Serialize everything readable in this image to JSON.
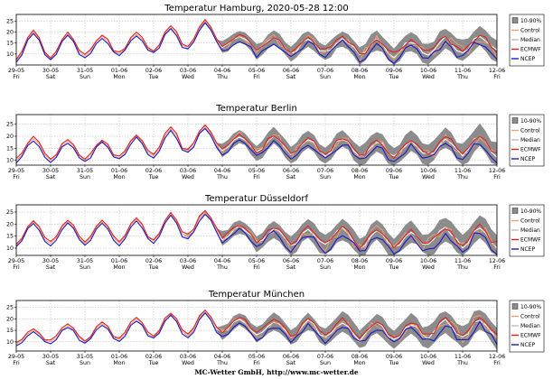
{
  "footer": "MC-Wetter GmbH, http://www.mc-wetter.de",
  "legend": [
    "10-90%",
    "Control",
    "Median",
    "ECMWF",
    "NCEP"
  ],
  "colors": {
    "band": "#8c8c8c",
    "control": "#f0a070",
    "median": "#ffffff",
    "ecmwf": "#dd2222",
    "ncep": "#1a1acc"
  },
  "chart_data": [
    {
      "type": "line",
      "title": "Temperatur Hamburg, 2020-05-28 12:00",
      "ylim": [
        5,
        28
      ],
      "yticks": [
        10,
        15,
        20,
        25
      ],
      "x_dates": [
        "29-05",
        "30-05",
        "31-05",
        "01-06",
        "02-06",
        "03-06",
        "04-06",
        "05-06",
        "06-06",
        "07-06",
        "08-06",
        "09-06",
        "10-06",
        "11-06",
        "12-06"
      ],
      "x_days": [
        "Fri",
        "Sat",
        "Sun",
        "Mon",
        "Tue",
        "Wed",
        "Thu",
        "Fri",
        "Sat",
        "Sun",
        "Mon",
        "Tue",
        "Wed",
        "Thu",
        "Fri"
      ],
      "grid": true,
      "legend_position": "right",
      "lows": [
        7,
        8,
        9,
        10,
        11,
        13,
        13,
        11,
        10,
        11,
        9,
        9,
        10,
        11
      ],
      "highs": [
        20,
        19,
        18,
        19,
        22,
        25,
        18,
        17,
        17,
        17,
        16,
        16,
        17,
        18
      ],
      "band_spread": [
        0,
        0,
        0,
        0,
        0,
        1,
        4,
        5,
        5,
        5,
        6,
        6,
        7,
        7
      ]
    },
    {
      "type": "line",
      "title": "Temperatur Berlin",
      "ylim": [
        8,
        29
      ],
      "yticks": [
        10,
        15,
        20,
        25
      ],
      "x_dates": [
        "29-05",
        "30-05",
        "31-05",
        "01-06",
        "02-06",
        "03-06",
        "04-06",
        "05-06",
        "06-06",
        "07-06",
        "08-06",
        "09-06",
        "10-06",
        "11-06",
        "12-06"
      ],
      "x_days": [
        "Fri",
        "Sat",
        "Sun",
        "Mon",
        "Tue",
        "Wed",
        "Thu",
        "Fri",
        "Sat",
        "Sun",
        "Mon",
        "Tue",
        "Wed",
        "Thu",
        "Fri"
      ],
      "grid": true,
      "legend_position": "right",
      "lows": [
        10,
        10,
        10,
        11,
        12,
        14,
        14,
        13,
        12,
        12,
        11,
        11,
        12,
        12
      ],
      "highs": [
        19,
        18,
        18,
        20,
        23,
        24,
        20,
        20,
        19,
        19,
        18,
        18,
        19,
        20
      ],
      "band_spread": [
        0,
        0,
        0,
        0,
        0,
        1,
        4,
        5,
        5,
        5,
        6,
        6,
        6,
        7
      ]
    },
    {
      "type": "line",
      "title": "Temperatur Düsseldorf",
      "ylim": [
        7,
        28
      ],
      "yticks": [
        10,
        15,
        20,
        25
      ],
      "x_dates": [
        "29-05",
        "30-05",
        "31-05",
        "01-06",
        "02-06",
        "03-06",
        "04-06",
        "05-06",
        "06-06",
        "07-06",
        "08-06",
        "09-06",
        "10-06",
        "11-06",
        "12-06"
      ],
      "x_days": [
        "Fri",
        "Sat",
        "Sun",
        "Mon",
        "Tue",
        "Wed",
        "Thu",
        "Fri",
        "Sat",
        "Sun",
        "Mon",
        "Tue",
        "Wed",
        "Thu",
        "Fri"
      ],
      "grid": true,
      "legend_position": "right",
      "lows": [
        11,
        12,
        12,
        12,
        13,
        15,
        14,
        12,
        11,
        11,
        10,
        10,
        11,
        11
      ],
      "highs": [
        21,
        21,
        21,
        22,
        24,
        25,
        19,
        18,
        18,
        18,
        17,
        17,
        18,
        19
      ],
      "band_spread": [
        0,
        0,
        0,
        0,
        0,
        1,
        4,
        5,
        6,
        6,
        6,
        6,
        7,
        7
      ]
    },
    {
      "type": "line",
      "title": "Temperatur München",
      "ylim": [
        6,
        28
      ],
      "yticks": [
        10,
        15,
        20,
        25
      ],
      "x_dates": [
        "29-05",
        "30-05",
        "31-05",
        "01-06",
        "02-06",
        "03-06",
        "04-06",
        "05-06",
        "06-06",
        "07-06",
        "08-06",
        "09-06",
        "10-06",
        "11-06",
        "12-06"
      ],
      "x_days": [
        "Fri",
        "Sat",
        "Sun",
        "Mon",
        "Tue",
        "Wed",
        "Thu",
        "Fri",
        "Sat",
        "Sun",
        "Mon",
        "Tue",
        "Wed",
        "Thu",
        "Fri"
      ],
      "grid": true,
      "legend_position": "right",
      "lows": [
        9,
        10,
        10,
        11,
        12,
        13,
        14,
        13,
        12,
        12,
        11,
        11,
        12,
        12
      ],
      "highs": [
        15,
        17,
        18,
        20,
        22,
        23,
        20,
        19,
        19,
        19,
        18,
        18,
        19,
        20
      ],
      "band_spread": [
        0,
        0,
        0,
        0,
        0,
        1,
        4,
        5,
        5,
        6,
        6,
        6,
        7,
        7
      ]
    }
  ]
}
